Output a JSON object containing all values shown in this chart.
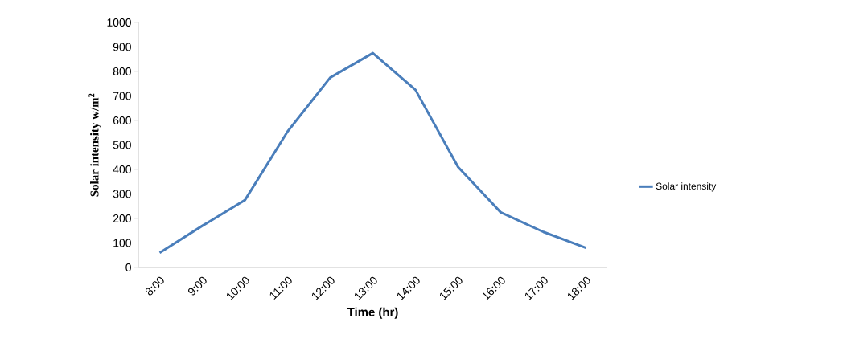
{
  "chart_data": {
    "type": "line",
    "xlabel": "Time (hr)",
    "ylabel": "Solar intensity w/m$^{2}$",
    "categories": [
      "8:00",
      "9:00",
      "10:00",
      "11:00",
      "12:00",
      "13:00",
      "14:00",
      "15:00",
      "16:00",
      "17:00",
      "18:00"
    ],
    "series": [
      {
        "name": "Solar intensity",
        "color": "#4a7ebb",
        "values": [
          60,
          170,
          275,
          555,
          775,
          875,
          725,
          410,
          225,
          145,
          80
        ]
      }
    ],
    "ylim": [
      0,
      1000
    ],
    "yticks": [
      0,
      100,
      200,
      300,
      400,
      500,
      600,
      700,
      800,
      900,
      1000
    ],
    "legend": "right",
    "marker": "none",
    "line_style": "solid",
    "grid": false
  }
}
